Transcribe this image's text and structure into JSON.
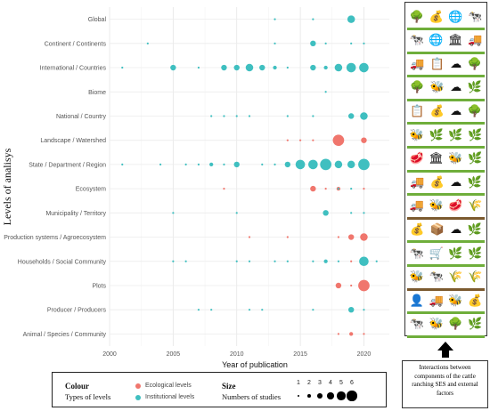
{
  "chart_data": {
    "type": "scatter",
    "xlabel": "Year of publication",
    "ylabel": "Levels of analisys",
    "xlim": [
      2000,
      2022
    ],
    "xticks": [
      2000,
      2005,
      2010,
      2015,
      2020
    ],
    "grid": true,
    "legend_position": "bottom",
    "levels": [
      "Global",
      "Continent / Continents",
      "International / Countries",
      "Biome",
      "National / Country",
      "Landscape / Watershed",
      "State / Department / Region",
      "Ecosystem",
      "Municipality / Territory",
      "Production systems / Agroecosystem",
      "Households / Social Community",
      "Plots",
      "Producer / Producers",
      "Animal / Species / Community"
    ],
    "series": [
      {
        "name": "Ecological levels",
        "color": "#f0766d",
        "points": [
          {
            "level": "Landscape / Watershed",
            "year": 2014,
            "n": 1
          },
          {
            "level": "Landscape / Watershed",
            "year": 2015,
            "n": 1
          },
          {
            "level": "Landscape / Watershed",
            "year": 2016,
            "n": 1
          },
          {
            "level": "Landscape / Watershed",
            "year": 2018,
            "n": 6
          },
          {
            "level": "Landscape / Watershed",
            "year": 2020,
            "n": 3
          },
          {
            "level": "Ecosystem",
            "year": 2009,
            "n": 1
          },
          {
            "level": "Ecosystem",
            "year": 2016,
            "n": 3
          },
          {
            "level": "Ecosystem",
            "year": 2017,
            "n": 1
          },
          {
            "level": "Ecosystem",
            "year": 2018,
            "n": 2
          },
          {
            "level": "Ecosystem",
            "year": 2020,
            "n": 1
          },
          {
            "level": "Production systems / Agroecosystem",
            "year": 2011,
            "n": 1
          },
          {
            "level": "Production systems / Agroecosystem",
            "year": 2014,
            "n": 1
          },
          {
            "level": "Production systems / Agroecosystem",
            "year": 2018,
            "n": 1
          },
          {
            "level": "Production systems / Agroecosystem",
            "year": 2019,
            "n": 3
          },
          {
            "level": "Production systems / Agroecosystem",
            "year": 2020,
            "n": 4
          },
          {
            "level": "Households / Social Community",
            "year": 2019,
            "n": 1
          },
          {
            "level": "Plots",
            "year": 2018,
            "n": 3
          },
          {
            "level": "Plots",
            "year": 2019,
            "n": 1
          },
          {
            "level": "Plots",
            "year": 2020,
            "n": 6
          },
          {
            "level": "Animal / Species / Community",
            "year": 2018,
            "n": 1
          },
          {
            "level": "Animal / Species / Community",
            "year": 2019,
            "n": 2
          },
          {
            "level": "Animal / Species / Community",
            "year": 2020,
            "n": 1
          }
        ]
      },
      {
        "name": "Institutional levels",
        "color": "#3fbfc0",
        "points": [
          {
            "level": "Global",
            "year": 2013,
            "n": 1
          },
          {
            "level": "Global",
            "year": 2016,
            "n": 1
          },
          {
            "level": "Global",
            "year": 2019,
            "n": 4
          },
          {
            "level": "Continent / Continents",
            "year": 2003,
            "n": 1
          },
          {
            "level": "Continent / Continents",
            "year": 2013,
            "n": 1
          },
          {
            "level": "Continent / Continents",
            "year": 2016,
            "n": 3
          },
          {
            "level": "Continent / Continents",
            "year": 2017,
            "n": 1
          },
          {
            "level": "Continent / Continents",
            "year": 2019,
            "n": 1
          },
          {
            "level": "Continent / Continents",
            "year": 2020,
            "n": 1
          },
          {
            "level": "International / Countries",
            "year": 2001,
            "n": 1
          },
          {
            "level": "International / Countries",
            "year": 2005,
            "n": 3
          },
          {
            "level": "International / Countries",
            "year": 2007,
            "n": 1
          },
          {
            "level": "International / Countries",
            "year": 2009,
            "n": 3
          },
          {
            "level": "International / Countries",
            "year": 2010,
            "n": 3
          },
          {
            "level": "International / Countries",
            "year": 2011,
            "n": 4
          },
          {
            "level": "International / Countries",
            "year": 2012,
            "n": 3
          },
          {
            "level": "International / Countries",
            "year": 2013,
            "n": 2
          },
          {
            "level": "International / Countries",
            "year": 2014,
            "n": 1
          },
          {
            "level": "International / Countries",
            "year": 2016,
            "n": 3
          },
          {
            "level": "International / Countries",
            "year": 2017,
            "n": 2
          },
          {
            "level": "International / Countries",
            "year": 2018,
            "n": 4
          },
          {
            "level": "International / Countries",
            "year": 2019,
            "n": 5
          },
          {
            "level": "International / Countries",
            "year": 2020,
            "n": 5
          },
          {
            "level": "Biome",
            "year": 2017,
            "n": 1
          },
          {
            "level": "National / Country",
            "year": 2008,
            "n": 1
          },
          {
            "level": "National / Country",
            "year": 2009,
            "n": 1
          },
          {
            "level": "National / Country",
            "year": 2010,
            "n": 1
          },
          {
            "level": "National / Country",
            "year": 2011,
            "n": 1
          },
          {
            "level": "National / Country",
            "year": 2014,
            "n": 1
          },
          {
            "level": "National / Country",
            "year": 2016,
            "n": 1
          },
          {
            "level": "National / Country",
            "year": 2019,
            "n": 3
          },
          {
            "level": "National / Country",
            "year": 2020,
            "n": 4
          },
          {
            "level": "State / Department / Region",
            "year": 2001,
            "n": 1
          },
          {
            "level": "State / Department / Region",
            "year": 2004,
            "n": 1
          },
          {
            "level": "State / Department / Region",
            "year": 2006,
            "n": 1
          },
          {
            "level": "State / Department / Region",
            "year": 2007,
            "n": 1
          },
          {
            "level": "State / Department / Region",
            "year": 2008,
            "n": 2
          },
          {
            "level": "State / Department / Region",
            "year": 2009,
            "n": 1
          },
          {
            "level": "State / Department / Region",
            "year": 2010,
            "n": 3
          },
          {
            "level": "State / Department / Region",
            "year": 2012,
            "n": 1
          },
          {
            "level": "State / Department / Region",
            "year": 2013,
            "n": 1
          },
          {
            "level": "State / Department / Region",
            "year": 2014,
            "n": 3
          },
          {
            "level": "State / Department / Region",
            "year": 2015,
            "n": 5
          },
          {
            "level": "State / Department / Region",
            "year": 2016,
            "n": 5
          },
          {
            "level": "State / Department / Region",
            "year": 2017,
            "n": 6
          },
          {
            "level": "State / Department / Region",
            "year": 2018,
            "n": 4
          },
          {
            "level": "State / Department / Region",
            "year": 2019,
            "n": 4
          },
          {
            "level": "State / Department / Region",
            "year": 2020,
            "n": 6
          },
          {
            "level": "Ecosystem",
            "year": 2018,
            "n": 1
          },
          {
            "level": "Ecosystem",
            "year": 2019,
            "n": 1
          },
          {
            "level": "Municipality / Territory",
            "year": 2005,
            "n": 1
          },
          {
            "level": "Municipality / Territory",
            "year": 2010,
            "n": 1
          },
          {
            "level": "Municipality / Territory",
            "year": 2017,
            "n": 3
          },
          {
            "level": "Municipality / Territory",
            "year": 2019,
            "n": 1
          },
          {
            "level": "Municipality / Territory",
            "year": 2020,
            "n": 1
          },
          {
            "level": "Households / Social Community",
            "year": 2005,
            "n": 1
          },
          {
            "level": "Households / Social Community",
            "year": 2006,
            "n": 1
          },
          {
            "level": "Households / Social Community",
            "year": 2010,
            "n": 1
          },
          {
            "level": "Households / Social Community",
            "year": 2011,
            "n": 1
          },
          {
            "level": "Households / Social Community",
            "year": 2013,
            "n": 1
          },
          {
            "level": "Households / Social Community",
            "year": 2014,
            "n": 1
          },
          {
            "level": "Households / Social Community",
            "year": 2016,
            "n": 1
          },
          {
            "level": "Households / Social Community",
            "year": 2017,
            "n": 2
          },
          {
            "level": "Households / Social Community",
            "year": 2018,
            "n": 1
          },
          {
            "level": "Households / Social Community",
            "year": 2020,
            "n": 5
          },
          {
            "level": "Households / Social Community",
            "year": 2021,
            "n": 1
          },
          {
            "level": "Producer / Producers",
            "year": 2007,
            "n": 1
          },
          {
            "level": "Producer / Producers",
            "year": 2008,
            "n": 1
          },
          {
            "level": "Producer / Producers",
            "year": 2011,
            "n": 1
          },
          {
            "level": "Producer / Producers",
            "year": 2012,
            "n": 1
          },
          {
            "level": "Producer / Producers",
            "year": 2016,
            "n": 1
          },
          {
            "level": "Producer / Producers",
            "year": 2019,
            "n": 3
          },
          {
            "level": "Producer / Producers",
            "year": 2020,
            "n": 1
          }
        ]
      }
    ]
  },
  "legend": {
    "colour_title": "Colour",
    "colour_subtitle": "Types of levels",
    "ecological_label": "Ecological levels",
    "institutional_label": "Institutional levels",
    "size_title": "Size",
    "size_subtitle": "Numbers of studies",
    "sizes": [
      "1",
      "2",
      "3",
      "4",
      "5",
      "6"
    ]
  },
  "icons": {
    "rows": [
      {
        "theme": "green",
        "glyphs": [
          "🌳",
          "💰",
          "🌐",
          "🐄"
        ]
      },
      {
        "theme": "green",
        "glyphs": [
          "🐄",
          "🌐",
          "🏛",
          "🚚"
        ]
      },
      {
        "theme": "green",
        "glyphs": [
          "🚚",
          "📋",
          "☁",
          "🌳"
        ]
      },
      {
        "theme": "green",
        "glyphs": [
          "🌳",
          "🐝",
          "☁",
          "🌿"
        ]
      },
      {
        "theme": "green",
        "glyphs": [
          "📋",
          "💰",
          "☁",
          "🌳"
        ]
      },
      {
        "theme": "green",
        "glyphs": [
          "🐝",
          "🌿",
          "🌿",
          "🌿"
        ]
      },
      {
        "theme": "green",
        "glyphs": [
          "🥩",
          "🏛",
          "🐝",
          "🌿"
        ]
      },
      {
        "theme": "green",
        "glyphs": [
          "🚚",
          "💰",
          "☁",
          "🌿"
        ]
      },
      {
        "theme": "brown",
        "glyphs": [
          "🚚",
          "🐝",
          "🥩",
          "🌾"
        ]
      },
      {
        "theme": "green",
        "glyphs": [
          "💰",
          "📦",
          "☁",
          "🌿"
        ]
      },
      {
        "theme": "green",
        "glyphs": [
          "🐄",
          "🛒",
          "🌿",
          "🌿"
        ]
      },
      {
        "theme": "brown",
        "glyphs": [
          "🐝",
          "🐄",
          "🌾",
          "🌾"
        ]
      },
      {
        "theme": "green",
        "glyphs": [
          "👤",
          "🚚",
          "🐝",
          "💰"
        ]
      },
      {
        "theme": "green",
        "glyphs": [
          "🐄",
          "🐝",
          "🌳",
          "🌿"
        ]
      }
    ]
  },
  "caption": "Interactions between components of the cattle ranching SES and external factors"
}
